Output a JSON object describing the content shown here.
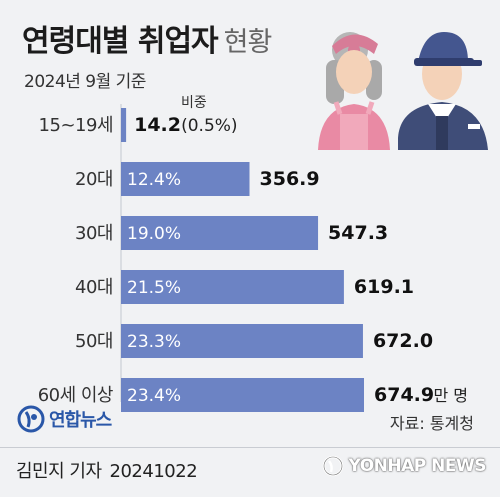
{
  "header": {
    "title": "연령대별 취업자",
    "title_suffix": "현황",
    "subtitle": "2024년 9월 기준",
    "share_label": "비중"
  },
  "chart_data": {
    "type": "bar",
    "orientation": "horizontal",
    "categories": [
      "15~19세",
      "20대",
      "30대",
      "40대",
      "50대",
      "60세 이상"
    ],
    "values": [
      14.2,
      356.9,
      547.3,
      619.1,
      672.0,
      674.9
    ],
    "value_labels": [
      "14.2",
      "356.9",
      "547.3",
      "619.1",
      "672.0",
      "674.9"
    ],
    "share_labels": [
      "(0.5%)",
      "12.4%",
      "19.0%",
      "21.5%",
      "23.3%",
      "23.4%"
    ],
    "unit": "만 명",
    "bar_color": "#6c83c4",
    "xlim": [
      0,
      674.9
    ]
  },
  "footer": {
    "logo_text": "연합뉴스",
    "source": "자료: 통계청",
    "credit": "김민지 기자",
    "date": "20241022",
    "agency": "YONHAP NEWS"
  }
}
